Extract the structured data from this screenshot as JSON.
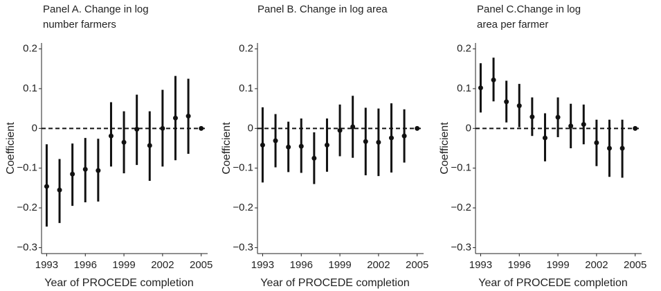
{
  "chart_data": [
    {
      "type": "errorbar",
      "title": [
        "Panel A. Change in log",
        "number farmers"
      ],
      "x_label": "Year of PROCEDE completion",
      "y_label": "Coefficient",
      "x": [
        1993,
        1994,
        1995,
        1996,
        1997,
        1998,
        1999,
        2000,
        2001,
        2002,
        2003,
        2004,
        2005
      ],
      "values": [
        -0.146,
        -0.155,
        -0.115,
        -0.103,
        -0.106,
        -0.019,
        -0.035,
        -0.002,
        -0.043,
        0.0,
        0.026,
        0.031,
        0
      ],
      "ci_low": [
        -0.247,
        -0.238,
        -0.195,
        -0.186,
        -0.184,
        -0.096,
        -0.113,
        -0.092,
        -0.132,
        -0.096,
        -0.08,
        -0.064,
        null
      ],
      "ci_high": [
        -0.04,
        -0.077,
        -0.038,
        -0.024,
        -0.026,
        0.066,
        0.043,
        0.085,
        0.043,
        0.097,
        0.132,
        0.125,
        null
      ],
      "color": "#111111",
      "zero_line": true,
      "xlim": [
        1992.6,
        2005.5
      ],
      "xticks": [
        1993,
        1996,
        1999,
        2002,
        2005
      ],
      "ylim": [
        -0.315,
        0.215
      ],
      "yticks": [
        0.2,
        0.1,
        0,
        {
          "value": -0.1,
          "label": "−0.1"
        },
        {
          "value": -0.2,
          "label": "−0.2"
        },
        {
          "value": -0.3,
          "label": "−0.3"
        }
      ]
    },
    {
      "type": "errorbar",
      "title": [
        "Panel B. Change in log area"
      ],
      "x_label": "Year of PROCEDE completion",
      "y_label": "Coefficient",
      "x": [
        1993,
        1994,
        1995,
        1996,
        1997,
        1998,
        1999,
        2000,
        2001,
        2002,
        2003,
        2004,
        2005
      ],
      "values": [
        -0.042,
        -0.031,
        -0.047,
        -0.045,
        -0.075,
        -0.042,
        -0.005,
        0.004,
        -0.033,
        -0.035,
        -0.024,
        -0.019,
        0
      ],
      "ci_low": [
        -0.136,
        -0.098,
        -0.11,
        -0.112,
        -0.14,
        -0.109,
        -0.07,
        -0.074,
        -0.118,
        -0.12,
        -0.111,
        -0.086,
        null
      ],
      "ci_high": [
        0.053,
        0.036,
        0.017,
        0.025,
        -0.01,
        0.025,
        0.06,
        0.082,
        0.052,
        0.05,
        0.063,
        0.048,
        null
      ],
      "color": "#111111",
      "zero_line": true,
      "xlim": [
        1992.6,
        2005.5
      ],
      "xticks": [
        1993,
        1996,
        1999,
        2002,
        2005
      ],
      "ylim": [
        -0.315,
        0.215
      ],
      "yticks": [
        0.2,
        0.1,
        0,
        {
          "value": -0.1,
          "label": "−0.1"
        },
        {
          "value": -0.2,
          "label": "−0.2"
        },
        {
          "value": -0.3,
          "label": "−0.3"
        }
      ]
    },
    {
      "type": "errorbar",
      "title": [
        "Panel C.Change in log",
        "area per farmer"
      ],
      "x_label": "Year of PROCEDE completion",
      "y_label": "Coefficient",
      "x": [
        1993,
        1994,
        1995,
        1996,
        1997,
        1998,
        1999,
        2000,
        2001,
        2002,
        2003,
        2004,
        2005
      ],
      "values": [
        0.102,
        0.122,
        0.067,
        0.057,
        0.029,
        -0.024,
        0.028,
        0.006,
        0.01,
        -0.036,
        -0.05,
        -0.05,
        0
      ],
      "ci_low": [
        0.04,
        0.068,
        0.015,
        0.003,
        -0.019,
        -0.083,
        -0.022,
        -0.05,
        -0.04,
        -0.095,
        -0.122,
        -0.124,
        null
      ],
      "ci_high": [
        0.164,
        0.178,
        0.12,
        0.112,
        0.078,
        0.038,
        0.078,
        0.062,
        0.06,
        0.022,
        0.022,
        0.022,
        null
      ],
      "color": "#111111",
      "zero_line": true,
      "xlim": [
        1992.6,
        2005.5
      ],
      "xticks": [
        1993,
        1996,
        1999,
        2002,
        2005
      ],
      "ylim": [
        -0.315,
        0.215
      ],
      "yticks": [
        0.2,
        0.1,
        0,
        {
          "value": -0.1,
          "label": "−0.1"
        },
        {
          "value": -0.2,
          "label": "−0.2"
        },
        {
          "value": -0.3,
          "label": "−0.3"
        }
      ]
    }
  ]
}
